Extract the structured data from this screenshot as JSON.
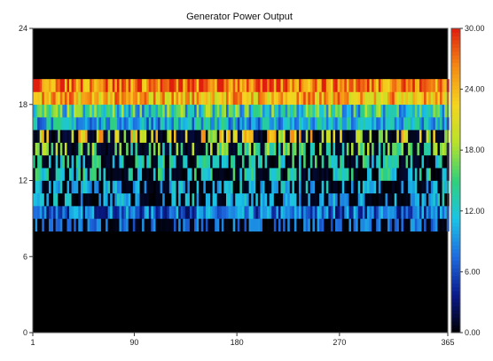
{
  "chart_data": {
    "type": "heatmap",
    "title": "Generator Power Output",
    "xlabel": "",
    "ylabel": "",
    "x_ticks": [
      1,
      90,
      180,
      270,
      365
    ],
    "y_ticks": [
      0,
      6,
      12,
      18,
      24
    ],
    "x_range": [
      1,
      365
    ],
    "y_range": [
      0,
      24
    ],
    "colorbar": {
      "ticks": [
        "0.00",
        "6.00",
        "12.00",
        "18.00",
        "24.00",
        "30.00"
      ],
      "range": [
        0,
        30
      ],
      "colors": [
        "#000000",
        "#0a1a8c",
        "#1e6be0",
        "#19c4e6",
        "#2fd07a",
        "#b8e22a",
        "#f5d51e",
        "#f58a14",
        "#e01e0e"
      ]
    },
    "grid": false,
    "legend": "right",
    "hours": [
      {
        "hour": 0,
        "value": 0
      },
      {
        "hour": 1,
        "value": 0
      },
      {
        "hour": 2,
        "value": 0
      },
      {
        "hour": 3,
        "value": 0
      },
      {
        "hour": 4,
        "value": 0
      },
      {
        "hour": 5,
        "value": 0
      },
      {
        "hour": 6,
        "value": 0
      },
      {
        "hour": 7,
        "value": 0
      },
      {
        "hour": 8,
        "value": 3
      },
      {
        "hour": 9,
        "value": 8
      },
      {
        "hour": 10,
        "value": 4
      },
      {
        "hour": 11,
        "value": 4
      },
      {
        "hour": 12,
        "value": 5
      },
      {
        "hour": 13,
        "value": 5
      },
      {
        "hour": 14,
        "value": 6
      },
      {
        "hour": 15,
        "value": 8
      },
      {
        "hour": 16,
        "value": 11
      },
      {
        "hour": 17,
        "value": 14
      },
      {
        "hour": 18,
        "value": 24
      },
      {
        "hour": 19,
        "value": 27
      },
      {
        "hour": 20,
        "value": 0
      },
      {
        "hour": 21,
        "value": 0
      },
      {
        "hour": 22,
        "value": 0
      },
      {
        "hour": 23,
        "value": 0
      }
    ]
  }
}
